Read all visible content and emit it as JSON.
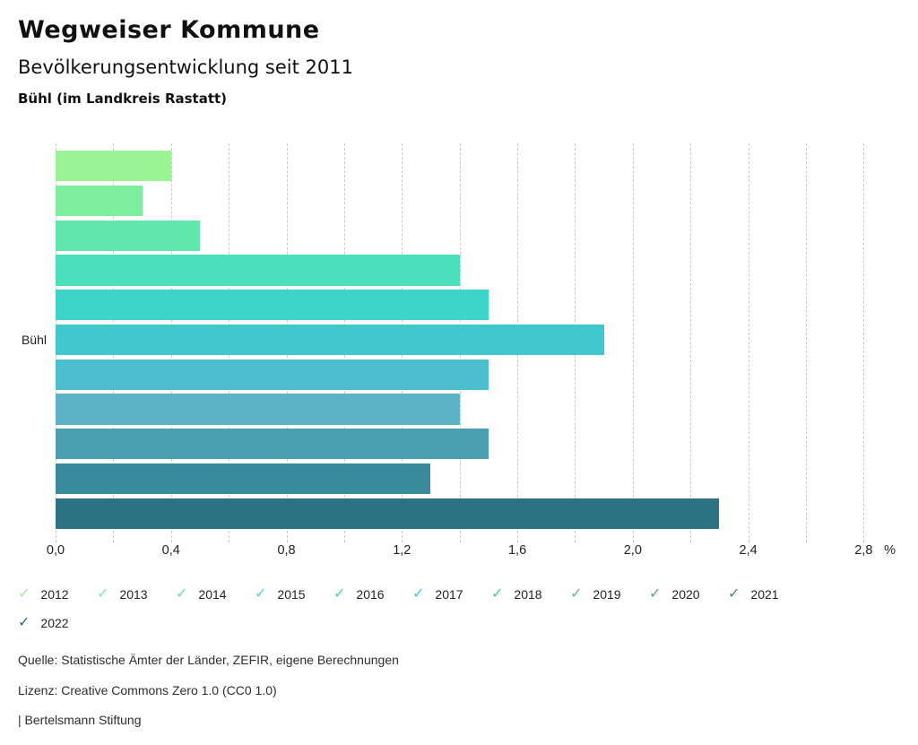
{
  "header": {
    "title": "Wegweiser Kommune",
    "subtitle": "Bevölkerungsentwicklung seit 2011",
    "location": "Bühl (im Landkreis Rastatt)"
  },
  "chart_data": {
    "type": "bar",
    "orientation": "horizontal",
    "group_label": "Bühl",
    "categories": [
      "2012",
      "2013",
      "2014",
      "2015",
      "2016",
      "2017",
      "2018",
      "2019",
      "2020",
      "2021",
      "2022"
    ],
    "values": [
      0.4,
      0.3,
      0.5,
      1.4,
      1.5,
      1.9,
      1.5,
      1.4,
      1.5,
      1.3,
      2.3
    ],
    "colors": [
      "#9af493",
      "#7dee9d",
      "#61e7ac",
      "#4cdfbe",
      "#3ed4ca",
      "#3fc8ce",
      "#4bbfce",
      "#5db3c6",
      "#4aa0b0",
      "#398a9b",
      "#2b7282"
    ],
    "unit": "%",
    "xlim": [
      0,
      2.92
    ],
    "grid_step": 0.2,
    "grid_max": 2.8,
    "grid_style": "dashed-vertical",
    "ticks": [
      {
        "value": 0.0,
        "label": "0,0"
      },
      {
        "value": 0.4,
        "label": "0,4"
      },
      {
        "value": 0.8,
        "label": "0,8"
      },
      {
        "value": 1.2,
        "label": "1,2"
      },
      {
        "value": 1.6,
        "label": "1,6"
      },
      {
        "value": 2.0,
        "label": "2,0"
      },
      {
        "value": 2.4,
        "label": "2,4"
      },
      {
        "value": 2.8,
        "label": "2,8"
      }
    ],
    "legend_position": "bottom"
  },
  "legend": {
    "check_icon": "✓"
  },
  "footer": {
    "source": "Quelle: Statistische Ämter der Länder, ZEFIR, eigene Berechnungen",
    "license": "Lizenz: Creative Commons Zero 1.0 (CC0 1.0)",
    "attribution": "| Bertelsmann Stiftung"
  }
}
